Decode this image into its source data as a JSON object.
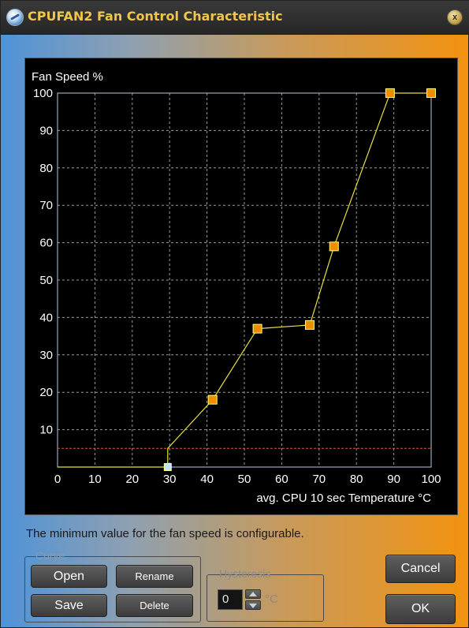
{
  "window": {
    "title": "CPUFAN2 Fan Control Characteristic",
    "close_label": "x"
  },
  "hint_text": "The minimum value for the fan speed is configurable.",
  "curve_group": {
    "label": "Curve",
    "open_label": "Open",
    "rename_label": "Rename",
    "save_label": "Save",
    "delete_label": "Delete"
  },
  "hysteresis_group": {
    "label": "Hysteresis",
    "value": "0",
    "unit": "°C"
  },
  "dialog_buttons": {
    "cancel_label": "Cancel",
    "ok_label": "OK"
  },
  "colors": {
    "curve": "#e8e03c",
    "point_fill": "#f08c00",
    "point_border": "#ffff80",
    "selected_point_fill": "#bfe6ff",
    "minimum_line": "#d9603a",
    "grid": "#9a9a9a",
    "axis": "#b8c8e0"
  },
  "chart_data": {
    "type": "line",
    "ylabel": "Fan Speed %",
    "xlabel": "avg. CPU 10 sec Temperature °C",
    "xlim": [
      0,
      100
    ],
    "ylim": [
      0,
      100
    ],
    "x_ticks": [
      0,
      10,
      20,
      30,
      40,
      50,
      60,
      70,
      80,
      90,
      100
    ],
    "y_ticks": [
      10,
      20,
      30,
      40,
      50,
      60,
      70,
      80,
      90,
      100
    ],
    "grid": true,
    "minimum_fan_speed": 5,
    "series": [
      {
        "points": [
          {
            "x": 0,
            "y": 0
          },
          {
            "x": 29.5,
            "y": 0
          },
          {
            "x": 29.5,
            "y": 5
          },
          {
            "x": 41.5,
            "y": 18
          },
          {
            "x": 53.5,
            "y": 37
          },
          {
            "x": 67.5,
            "y": 38
          },
          {
            "x": 74,
            "y": 59
          },
          {
            "x": 89,
            "y": 100
          },
          {
            "x": 100,
            "y": 100
          }
        ],
        "markers": [
          {
            "x": 29.5,
            "y": 0,
            "selected": true
          },
          {
            "x": 41.5,
            "y": 18
          },
          {
            "x": 53.5,
            "y": 37
          },
          {
            "x": 67.5,
            "y": 38
          },
          {
            "x": 74,
            "y": 59
          },
          {
            "x": 89,
            "y": 100
          },
          {
            "x": 100,
            "y": 100
          }
        ]
      }
    ]
  }
}
